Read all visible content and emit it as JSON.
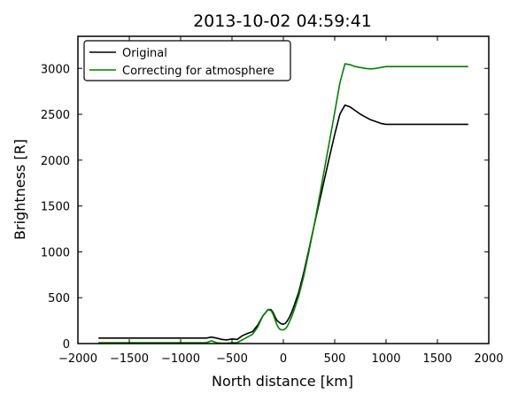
{
  "chart_data": {
    "type": "line",
    "title": "2013-10-02 04:59:41",
    "xlabel": "North distance [km]",
    "ylabel": "Brightness [R]",
    "xlim": [
      -2000,
      2000
    ],
    "ylim": [
      0,
      3350
    ],
    "xticks": [
      -2000,
      -1500,
      -1000,
      -500,
      0,
      500,
      1000,
      1500,
      2000
    ],
    "xtick_labels": [
      "−2000",
      "−1500",
      "−1000",
      "−500",
      "0",
      "500",
      "1000",
      "1500",
      "2000"
    ],
    "yticks": [
      0,
      500,
      1000,
      1500,
      2000,
      2500,
      3000
    ],
    "ytick_labels": [
      "0",
      "500",
      "1000",
      "1500",
      "2000",
      "2500",
      "3000"
    ],
    "grid": false,
    "legend_position": "top-left",
    "series": [
      {
        "name": "Original",
        "color": "#000000",
        "x": [
          -1800,
          -1500,
          -1000,
          -750,
          -700,
          -650,
          -600,
          -550,
          -500,
          -450,
          -400,
          -350,
          -300,
          -250,
          -200,
          -150,
          -120,
          -100,
          -80,
          -60,
          -40,
          -20,
          0,
          20,
          40,
          60,
          80,
          100,
          150,
          200,
          250,
          300,
          350,
          400,
          450,
          500,
          550,
          600,
          650,
          700,
          750,
          800,
          850,
          900,
          950,
          1000,
          1200,
          1500,
          1800
        ],
        "y": [
          60,
          60,
          60,
          60,
          70,
          60,
          45,
          40,
          50,
          45,
          85,
          110,
          130,
          200,
          300,
          370,
          370,
          340,
          290,
          250,
          230,
          215,
          210,
          220,
          250,
          290,
          340,
          400,
          560,
          780,
          1030,
          1290,
          1540,
          1790,
          2040,
          2280,
          2500,
          2600,
          2580,
          2540,
          2500,
          2470,
          2440,
          2420,
          2400,
          2390,
          2390,
          2390,
          2390
        ]
      },
      {
        "name": "Correcting for atmosphere",
        "color": "#008000",
        "x": [
          -1800,
          -1500,
          -1000,
          -750,
          -700,
          -650,
          -600,
          -550,
          -500,
          -450,
          -400,
          -350,
          -300,
          -250,
          -200,
          -150,
          -120,
          -100,
          -80,
          -60,
          -40,
          -20,
          0,
          20,
          40,
          60,
          80,
          100,
          150,
          200,
          250,
          300,
          350,
          400,
          450,
          500,
          550,
          600,
          650,
          700,
          750,
          800,
          850,
          900,
          950,
          1000,
          1200,
          1500,
          1800
        ],
        "y": [
          10,
          10,
          10,
          10,
          30,
          10,
          5,
          5,
          10,
          10,
          40,
          70,
          100,
          180,
          300,
          370,
          360,
          320,
          260,
          200,
          160,
          150,
          150,
          160,
          190,
          240,
          290,
          350,
          520,
          740,
          1010,
          1290,
          1590,
          1900,
          2210,
          2520,
          2840,
          3050,
          3040,
          3020,
          3010,
          3000,
          2995,
          3000,
          3010,
          3020,
          3020,
          3020,
          3020
        ]
      }
    ]
  }
}
